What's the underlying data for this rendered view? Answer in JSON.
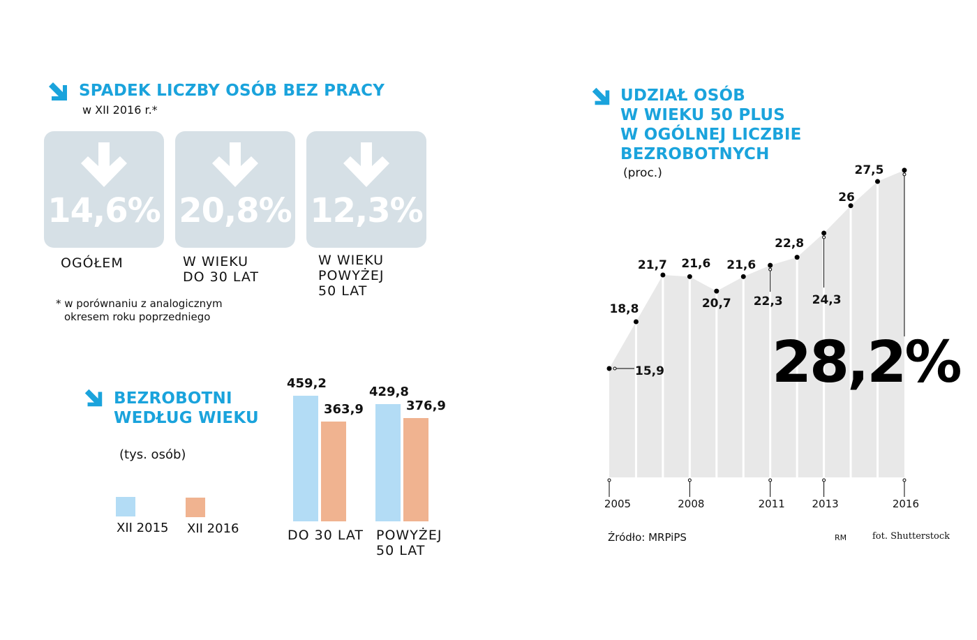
{
  "section1": {
    "title": "SPADEK LICZBY OSÓB BEZ PRACY",
    "subtitle": "w XII 2016 r.*",
    "cards": [
      {
        "value": "14,6%",
        "caption": "OGÓŁEM"
      },
      {
        "value": "20,8%",
        "caption": "W WIEKU\nDO 30 LAT"
      },
      {
        "value": "12,3%",
        "caption": "W WIEKU\nPOWYŻEJ\n50 LAT"
      }
    ],
    "footnote_line1": "* w porównaniu z analogicznym",
    "footnote_line2": "okresem roku poprzedniego"
  },
  "section2": {
    "title_line1": "BEZROBOTNI",
    "title_line2": "WEDŁUG WIEKU",
    "unit": "(tys. osób)",
    "legend": [
      {
        "label": "XII 2015",
        "color": "#b3dcf5"
      },
      {
        "label": "XII 2016",
        "color": "#f0b390"
      }
    ],
    "groups": [
      {
        "label": "DO 30 LAT",
        "v2015": "459,2",
        "v2016": "363,9"
      },
      {
        "label": "POWYŻEJ\n50 LAT",
        "v2015": "429,8",
        "v2016": "376,9"
      }
    ]
  },
  "section3": {
    "title_line1": "UDZIAŁ OSÓB",
    "title_line2": "W WIEKU 50 PLUS",
    "title_line3": "W OGÓLNEJ LICZBIE",
    "title_line4": "BEZROBOTNYCH",
    "unit": "(proc.)",
    "big_value": "28,2%",
    "source": "Źródło: MRPiPS",
    "initials": "RM",
    "photo_credit": "fot. Shutterstock",
    "year_labels": [
      "2005",
      "2008",
      "2011",
      "2013",
      "2016"
    ],
    "point_labels": [
      "15,9",
      "18,8",
      "21,7",
      "21,6",
      "20,7",
      "21,6",
      "22,3",
      "22,8",
      "24,3",
      "26",
      "27,5"
    ]
  },
  "chart_data": [
    {
      "type": "bar",
      "title": "BEZROBOTNI WEDŁUG WIEKU",
      "ylabel": "(tys. osób)",
      "categories": [
        "DO 30 LAT",
        "POWYŻEJ 50 LAT"
      ],
      "series": [
        {
          "name": "XII 2015",
          "values": [
            459.2,
            429.8
          ]
        },
        {
          "name": "XII 2016",
          "values": [
            363.9,
            376.9
          ]
        }
      ],
      "ylim": [
        0,
        480
      ]
    },
    {
      "type": "area",
      "title": "UDZIAŁ OSÓB W WIEKU 50 PLUS W OGÓLNEJ LICZBIE BEZROBOTNYCH",
      "ylabel": "(proc.)",
      "x": [
        2005,
        2006,
        2007,
        2008,
        2009,
        2010,
        2011,
        2012,
        2013,
        2014,
        2015,
        2016
      ],
      "values": [
        15.9,
        18.8,
        21.7,
        21.6,
        20.7,
        21.6,
        22.3,
        22.8,
        24.3,
        26,
        27.5,
        28.2
      ],
      "x_ticks_labeled": [
        2005,
        2008,
        2011,
        2013,
        2016
      ],
      "ylim": [
        5,
        29
      ]
    }
  ]
}
